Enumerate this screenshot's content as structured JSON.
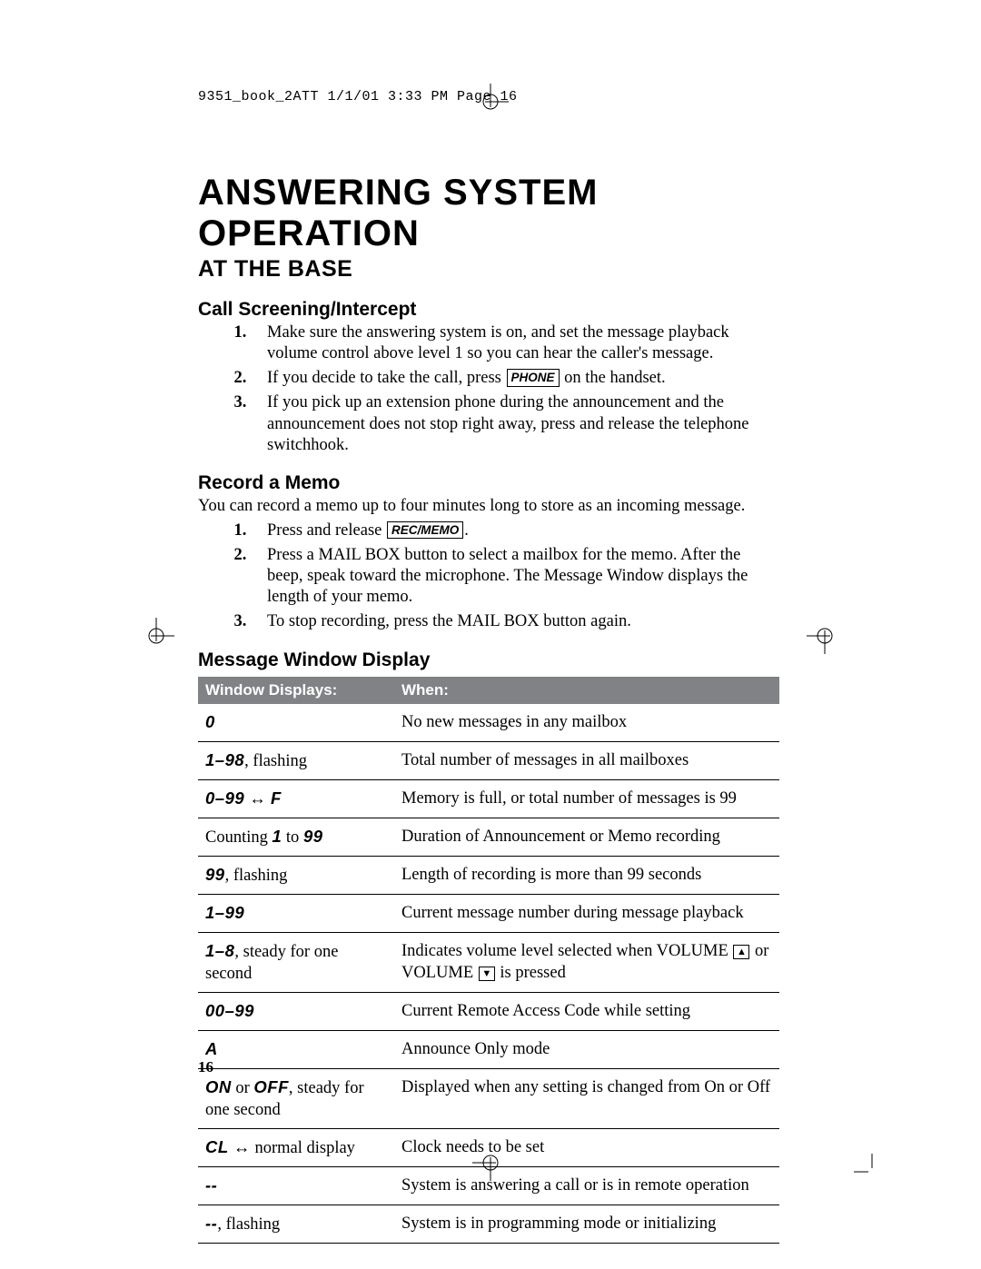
{
  "slug": "9351_book_2ATT  1/1/01  3:33 PM  Page 16",
  "main_title": "ANSWERING SYSTEM OPERATION",
  "subtitle": "AT THE BASE",
  "page_number": "16",
  "colors": {
    "table_header_bg": "#808285",
    "table_header_fg": "#ffffff",
    "text": "#000000",
    "background": "#ffffff",
    "rule": "#000000"
  },
  "sections": {
    "call_screening": {
      "heading": "Call Screening/Intercept",
      "steps": [
        {
          "pre": "Make sure the answering system is on, and set the message playback volume control above level 1 so you can hear the caller's message."
        },
        {
          "pre": "If you decide to take the call, press ",
          "key": "PHONE",
          "post": " on the handset."
        },
        {
          "pre": "If you pick up an extension phone during the announcement and the announcement does not stop right away, press and release the telephone switchhook."
        }
      ]
    },
    "record_memo": {
      "heading": "Record a Memo",
      "intro": "You can record a memo up to four minutes long to store as an incoming message.",
      "steps": [
        {
          "pre": "Press and release ",
          "key": "REC/MEMO",
          "post": "."
        },
        {
          "pre": "Press a MAIL BOX button to select a mailbox for the memo. After the beep, speak toward the microphone. The Message Window displays the length of your memo."
        },
        {
          "pre": "To stop recording, press the MAIL BOX button again."
        }
      ]
    },
    "message_window": {
      "heading": "Message Window Display",
      "columns": [
        "Window Displays:",
        "When:"
      ],
      "rows": [
        {
          "c1_lcd": "0",
          "c1_rest": "",
          "c2": "No new messages in any mailbox"
        },
        {
          "c1_lcd": "1–98",
          "c1_rest": ", flashing",
          "c2": "Total number of messages in all mailboxes"
        },
        {
          "c1_lcd": "0–99",
          "c1_arrow": " ↔ ",
          "c1_lcd2": "F",
          "c2": "Memory is full, or total number of messages is 99"
        },
        {
          "c1_pre": "Counting ",
          "c1_lcd": "1",
          "c1_mid": " to ",
          "c1_lcd2": "99",
          "c2": "Duration of Announcement or Memo recording"
        },
        {
          "c1_lcd": "99",
          "c1_rest": ", flashing",
          "c2": "Length of recording is more than 99 seconds"
        },
        {
          "c1_lcd": "1–99",
          "c2": "Current message number during message playback"
        },
        {
          "c1_lcd": "1–8",
          "c1_rest": ", steady for one second",
          "c2_pre": "Indicates volume level selected when VOLUME ",
          "c2_icon1": "▲",
          "c2_mid": " or VOLUME ",
          "c2_icon2": "▼",
          "c2_post": " is pressed"
        },
        {
          "c1_lcd": "00–99",
          "c2": "Current Remote Access Code while setting"
        },
        {
          "c1_lcd": "A",
          "c2": "Announce Only mode"
        },
        {
          "c1_lcd": "ON",
          "c1_mid": " or ",
          "c1_lcd2": "OFF",
          "c1_rest": ", steady for one second",
          "c2": "Displayed when any setting is changed from On or Off"
        },
        {
          "c1_lcd": "CL",
          "c1_arrow": " ↔ ",
          "c1_rest": "normal display",
          "c2": "Clock needs to be set"
        },
        {
          "c1_lcd": "--",
          "c2": "System is answering a call or is in remote operation"
        },
        {
          "c1_lcd": "--",
          "c1_rest": ", flashing",
          "c2": "System is in programming mode or initializing"
        }
      ]
    }
  }
}
